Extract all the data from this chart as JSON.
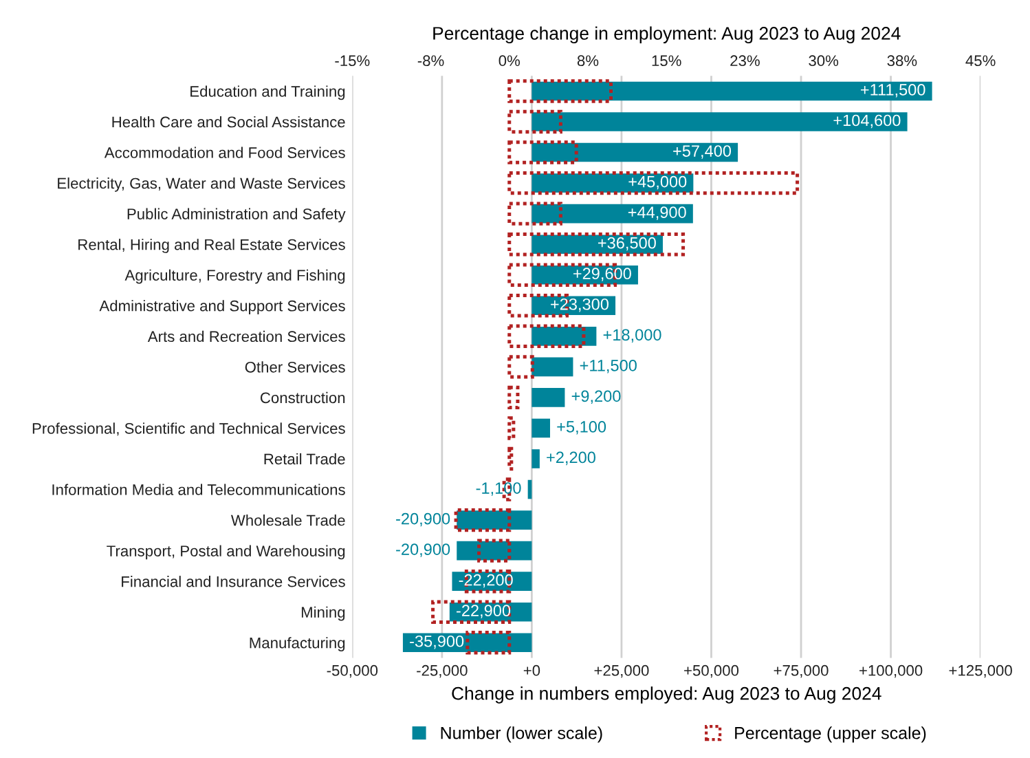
{
  "chart_data": {
    "type": "bar",
    "orientation": "horizontal",
    "x2label": "Percentage change in employment: Aug 2023 to Aug 2024",
    "xlabel": "Change in numbers employed: Aug 2023 to Aug 2024",
    "categories": [
      "Education and Training",
      "Health Care and Social Assistance",
      "Accommodation and Food Services",
      "Electricity, Gas, Water and Waste Services",
      "Public Administration and Safety",
      "Rental, Hiring and Real Estate Services",
      "Agriculture, Forestry and Fishing",
      "Administrative and Support Services",
      "Arts and Recreation Services",
      "Other Services",
      "Construction",
      "Professional, Scientific and Technical Services",
      "Retail Trade",
      "Information Media and Telecommunications",
      "Wholesale Trade",
      "Transport, Postal and Warehousing",
      "Financial and Insurance Services",
      "Mining",
      "Manufacturing"
    ],
    "series": [
      {
        "name": "Number (lower scale)",
        "color": "#00849a",
        "values": [
          111500,
          104600,
          57400,
          45000,
          44900,
          36500,
          29600,
          23300,
          18000,
          11500,
          9200,
          5100,
          2200,
          -1100,
          -20900,
          -20900,
          -22200,
          -22900,
          -35900
        ],
        "value_labels": [
          "+111,500",
          "+104,600",
          "+57,400",
          "+45,000",
          "+44,900",
          "+36,500",
          "+29,600",
          "+23,300",
          "+18,000",
          "+11,500",
          "+9,200",
          "+5,100",
          "+2,200",
          "-1,100",
          "-20,900",
          "-20,900",
          "-22,200",
          "-22,900",
          "-35,900"
        ]
      },
      {
        "name": "Percentage (upper scale)",
        "color": "#b22222",
        "axis": "x2",
        "line_style": "dotted",
        "values": [
          9.7,
          4.9,
          6.4,
          27.5,
          4.9,
          16.6,
          10.1,
          5.5,
          7.1,
          2.2,
          0.8,
          0.4,
          0.2,
          -0.5,
          -5.1,
          -2.9,
          -4.1,
          -7.3,
          -4.0
        ]
      }
    ],
    "xlim": [
      -50000,
      125000
    ],
    "xticks": [
      {
        "value": -50000,
        "label": "-50,000"
      },
      {
        "value": -25000,
        "label": "-25,000"
      },
      {
        "value": 0,
        "label": "+0"
      },
      {
        "value": 25000,
        "label": "+25,000"
      },
      {
        "value": 50000,
        "label": "+50,000"
      },
      {
        "value": 75000,
        "label": "+75,000"
      },
      {
        "value": 100000,
        "label": "+100,000"
      },
      {
        "value": 125000,
        "label": "+125,000"
      }
    ],
    "x2lim": [
      -15,
      45
    ],
    "x2ticks": [
      {
        "value": -15,
        "label": "-15%"
      },
      {
        "value": -7.5,
        "label": "-8%"
      },
      {
        "value": 0,
        "label": "0%"
      },
      {
        "value": 7.5,
        "label": "8%"
      },
      {
        "value": 15,
        "label": "15%"
      },
      {
        "value": 22.5,
        "label": "23%"
      },
      {
        "value": 30,
        "label": "30%"
      },
      {
        "value": 37.5,
        "label": "38%"
      },
      {
        "value": 45,
        "label": "45%"
      }
    ],
    "grid": "x",
    "legend": "bottom"
  }
}
